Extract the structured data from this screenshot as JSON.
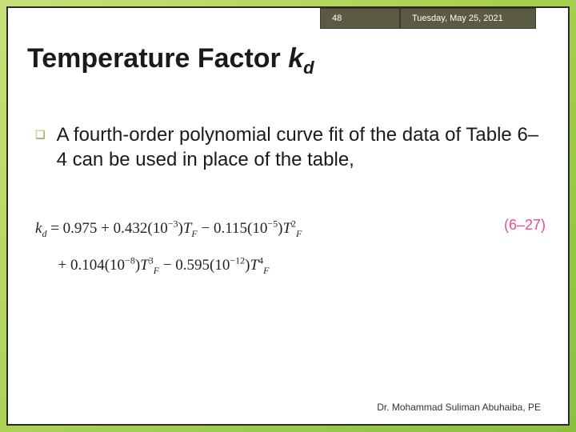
{
  "topbar": {
    "page_number": "48",
    "date": "Tuesday, May 25, 2021"
  },
  "title": {
    "main": "Temperature Factor ",
    "variable": "k",
    "subscript": "d"
  },
  "bullet": {
    "marker": "❑",
    "text": "A fourth-order polynomial curve fit of the data of Table 6–4 can be used in place of the table,"
  },
  "equation": {
    "lhs_var": "k",
    "lhs_sub": "d",
    "eq": " = ",
    "c0": "0.975",
    "plus1": " + ",
    "c1": "0.432",
    "p1a": "(10",
    "p1exp": "−3",
    "p1b": ")",
    "t1": "T",
    "t1sub": "F",
    "minus2": " − ",
    "c2": "0.115",
    "p2a": "(10",
    "p2exp": "−5",
    "p2b": ")",
    "t2": "T",
    "t2exp": "2",
    "t2sub": "F",
    "line2_pre": "+ ",
    "c3": "0.104",
    "p3a": "(10",
    "p3exp": "−8",
    "p3b": ")",
    "t3": "T",
    "t3exp": "3",
    "t3sub": "F",
    "minus4": " − ",
    "c4": "0.595",
    "p4a": "(10",
    "p4exp": "−12",
    "p4b": ")",
    "t4": "T",
    "t4exp": "4",
    "t4sub": "F"
  },
  "eq_number": "(6–27)",
  "footer": "Dr. Mohammad Suliman Abuhaiba, PE",
  "colors": {
    "topbar_bg": "#5b5a42",
    "bullet_color": "#7fa43a",
    "eqnum_color": "#e84c8a"
  }
}
